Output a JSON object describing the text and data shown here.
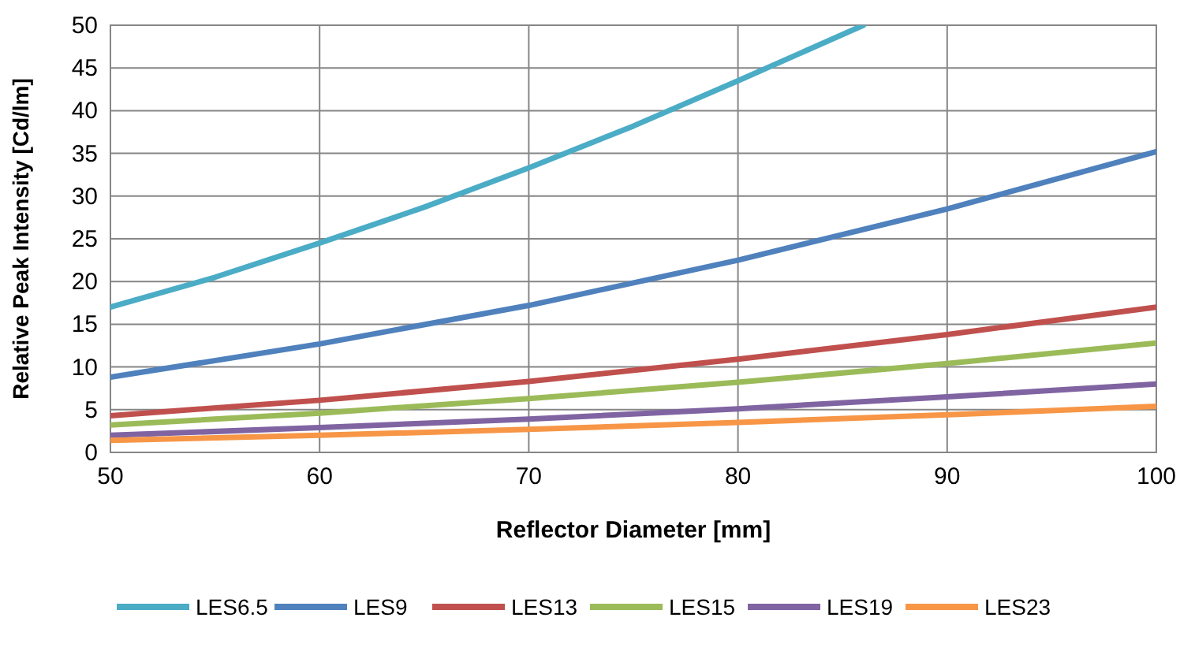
{
  "chart_data": {
    "type": "line",
    "xlabel": "Reflector Diameter [mm]",
    "ylabel": "Relative Peak Intensity [Cd/lm]",
    "xlim": [
      50,
      100
    ],
    "xticks": [
      50,
      60,
      70,
      80,
      90,
      100
    ],
    "ylim": [
      0,
      50
    ],
    "yticks": [
      0,
      5,
      10,
      15,
      20,
      25,
      30,
      35,
      40,
      45,
      50
    ],
    "grid": true,
    "legend": "bottom",
    "marker": "none",
    "line_style": "solid",
    "series": [
      {
        "name": "LES6.5",
        "color": "#4bacc6",
        "x": [
          50,
          55,
          60,
          65,
          70,
          75,
          80,
          86
        ],
        "values": [
          17,
          20.5,
          24.5,
          28.7,
          33.3,
          38.2,
          43.5,
          50
        ]
      },
      {
        "name": "LES9",
        "color": "#4f81bd",
        "x": [
          50,
          60,
          70,
          80,
          90,
          100
        ],
        "values": [
          8.8,
          12.7,
          17.2,
          22.5,
          28.5,
          35.2
        ]
      },
      {
        "name": "LES13",
        "color": "#c0504d",
        "x": [
          50,
          60,
          70,
          80,
          90,
          100
        ],
        "values": [
          4.3,
          6.1,
          8.3,
          10.9,
          13.8,
          17
        ]
      },
      {
        "name": "LES15",
        "color": "#9bbb59",
        "x": [
          50,
          60,
          70,
          80,
          90,
          100
        ],
        "values": [
          3.2,
          4.6,
          6.3,
          8.2,
          10.4,
          12.8
        ]
      },
      {
        "name": "LES19",
        "color": "#8064a2",
        "x": [
          50,
          60,
          70,
          80,
          90,
          100
        ],
        "values": [
          2,
          2.9,
          3.9,
          5.1,
          6.5,
          8
        ]
      },
      {
        "name": "LES23",
        "color": "#f79646",
        "x": [
          50,
          60,
          70,
          80,
          90,
          100
        ],
        "values": [
          1.4,
          2,
          2.7,
          3.5,
          4.4,
          5.4
        ]
      }
    ]
  }
}
